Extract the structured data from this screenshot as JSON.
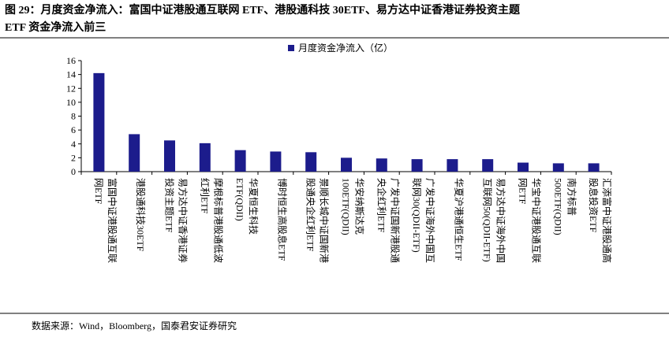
{
  "chart_data": {
    "type": "bar",
    "title": [
      "图 29：月度资金净流入：富国中证港股通互联网 ETF、港股通科技 30ETF、易方达中证香港证券投资主题",
      "ETF 资金净流入前三"
    ],
    "series_name": "月度资金净流入（亿）",
    "color": "#1c1c8c",
    "categories": [
      [
        "富国中证港股通互联",
        "网ETF"
      ],
      [
        "港股通科技30ETF"
      ],
      [
        "易方达中证香港证券",
        "投资主题ETF"
      ],
      [
        "摩根标普港股通低波",
        "红利ETF"
      ],
      [
        "华夏恒生科技",
        "ETF(QDII)"
      ],
      [
        "博时恒生高股息ETF"
      ],
      [
        "景顺长城中证国新港",
        "股通央企红利ETF"
      ],
      [
        "华安纳斯达克",
        "100ETF(QDII)"
      ],
      [
        "广发中证国新港股通",
        "央企红利ETF"
      ],
      [
        "广发中证海外中国互",
        "联网30(QDII-ETF)"
      ],
      [
        "华夏沪港通恒生ETF"
      ],
      [
        "易方达中证海外中国",
        "互联网50(QDII-ETF)"
      ],
      [
        "华宝中证港股通互联",
        "网ETF"
      ],
      [
        "南方标普",
        "500ETF(QDII)"
      ],
      [
        "汇添富中证港股通高",
        "股息投资ETF"
      ]
    ],
    "values": [
      14.2,
      5.4,
      4.5,
      4.1,
      3.1,
      2.9,
      2.8,
      2.0,
      1.9,
      1.8,
      1.8,
      1.8,
      1.3,
      1.2,
      1.2
    ],
    "ylim": [
      0,
      16
    ],
    "yticks": [
      0,
      2,
      4,
      6,
      8,
      10,
      12,
      14,
      16
    ],
    "source": "数据来源：Wind，Bloomberg，国泰君安证券研究"
  }
}
